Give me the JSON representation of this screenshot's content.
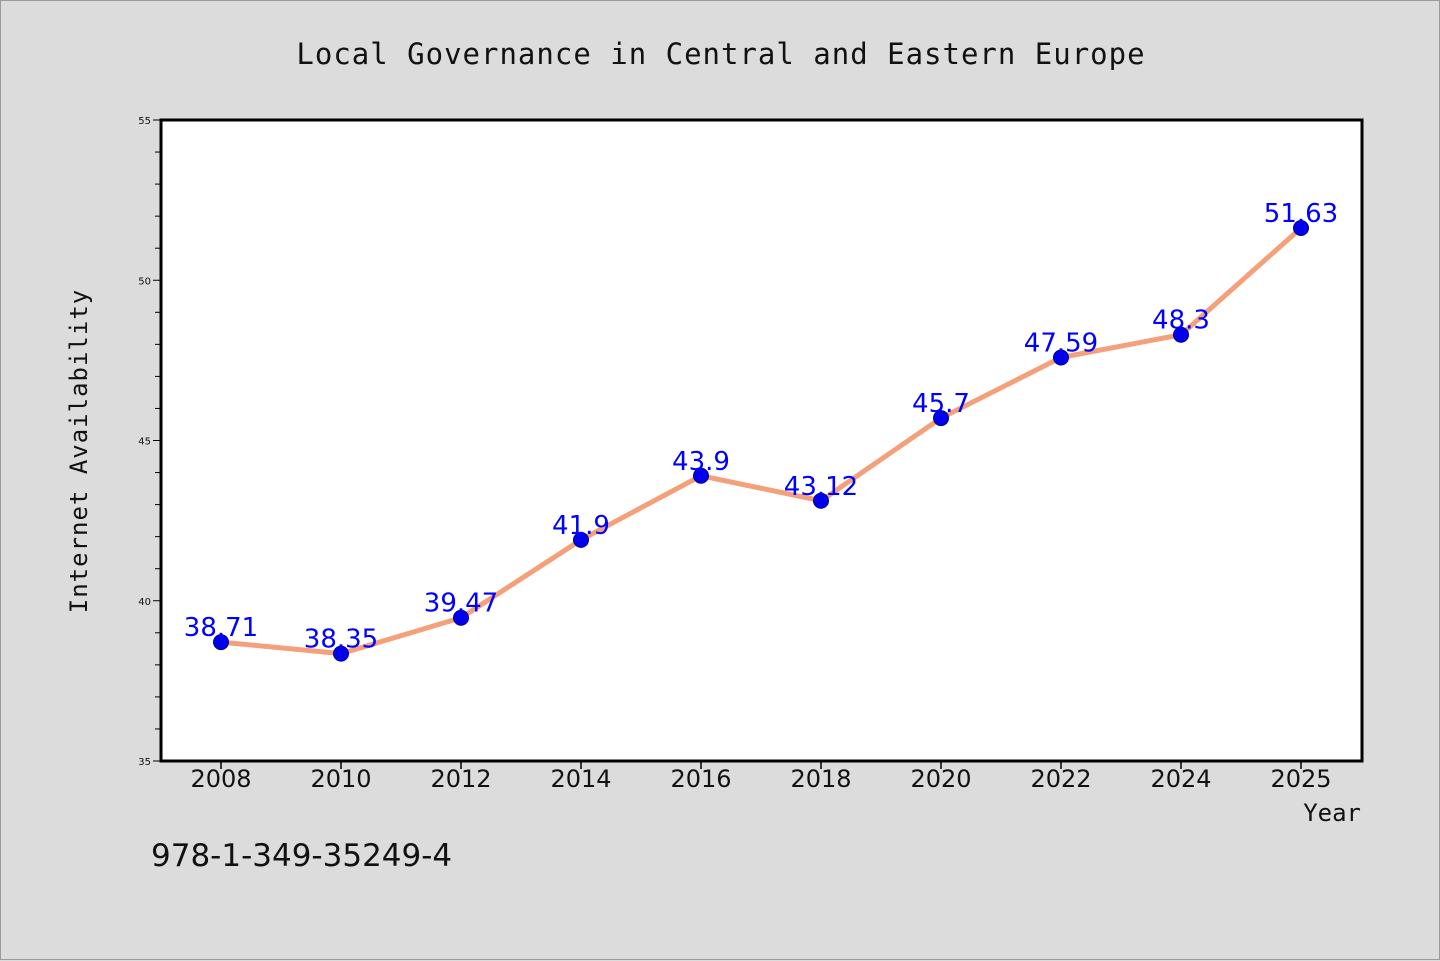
{
  "chart_data": {
    "type": "line",
    "title": "Local Governance in Central and Eastern Europe",
    "xlabel": "Year",
    "ylabel": "Internet Availability",
    "categories": [
      "2008",
      "2010",
      "2012",
      "2014",
      "2016",
      "2018",
      "2020",
      "2022",
      "2024",
      "2025"
    ],
    "series": [
      {
        "values": [
          38.71,
          38.35,
          39.47,
          41.9,
          43.9,
          43.12,
          45.7,
          47.59,
          48.3,
          51.63
        ],
        "data_labels": [
          "38.71",
          "38.35",
          "39.47",
          "41.9",
          "43.9",
          "43.12",
          "45.7",
          "47.59",
          "48.3",
          "51.63"
        ],
        "line_color": "#f4a07a",
        "marker_color": "#0000ee",
        "label_color": "#0000ff"
      }
    ],
    "ylim": [
      35,
      55
    ],
    "yticks": [
      "35",
      "40",
      "45",
      "50",
      "55"
    ],
    "grid": false,
    "legend": "none"
  },
  "footer": {
    "isbn": "978-1-349-35249-4"
  }
}
